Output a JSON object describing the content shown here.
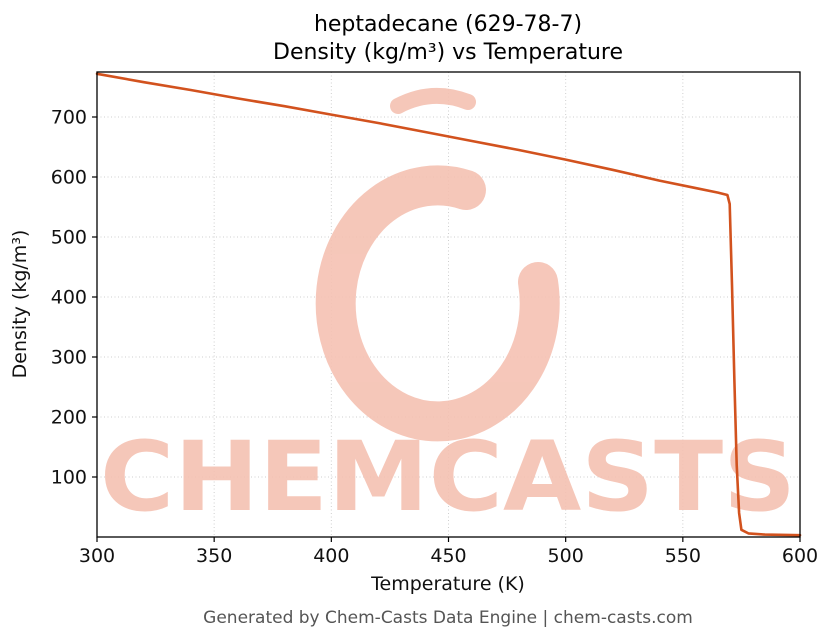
{
  "page": {
    "footer": "Generated by Chem-Casts Data Engine | chem-casts.com"
  },
  "chart_data": {
    "type": "line",
    "title": "heptadecane (629-78-7)",
    "subtitle": "Density (kg/m³) vs Temperature",
    "xlabel": "Temperature (K)",
    "ylabel": "Density (kg/m³)",
    "xlim": [
      300,
      600
    ],
    "ylim": [
      0,
      775
    ],
    "xticks": [
      300,
      350,
      400,
      450,
      500,
      550,
      600
    ],
    "yticks": [
      100,
      200,
      300,
      400,
      500,
      600,
      700
    ],
    "grid": true,
    "legend": false,
    "line_color": "#d2521e",
    "line_width": 2.6,
    "series": [
      {
        "name": "Density",
        "points": [
          [
            300,
            772
          ],
          [
            320,
            758
          ],
          [
            340,
            745
          ],
          [
            360,
            731
          ],
          [
            380,
            718
          ],
          [
            400,
            704
          ],
          [
            420,
            690
          ],
          [
            440,
            675
          ],
          [
            460,
            660
          ],
          [
            480,
            645
          ],
          [
            500,
            629
          ],
          [
            520,
            612
          ],
          [
            540,
            594
          ],
          [
            555,
            582
          ],
          [
            565,
            574
          ],
          [
            569,
            570
          ],
          [
            570,
            555
          ],
          [
            571,
            420
          ],
          [
            572,
            260
          ],
          [
            573,
            120
          ],
          [
            574,
            40
          ],
          [
            575,
            12
          ],
          [
            578,
            6
          ],
          [
            585,
            4
          ],
          [
            600,
            3
          ]
        ]
      }
    ],
    "watermark": {
      "text": "CHEMCASTS",
      "color": "#f5c1b2"
    }
  }
}
